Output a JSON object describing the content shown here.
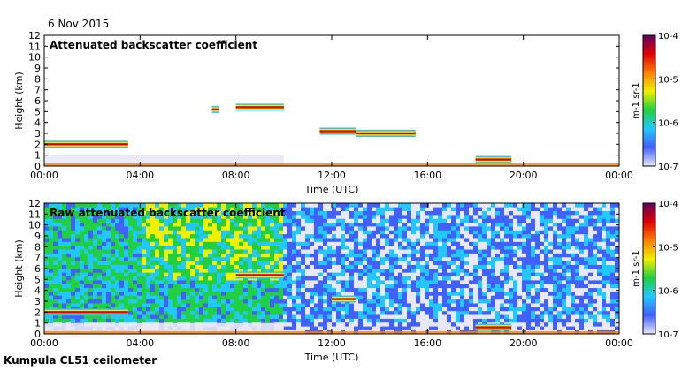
{
  "header": {
    "date": "6 Nov 2015"
  },
  "footer": {
    "instrument": "Kumpula CL51 ceilometer"
  },
  "colorbar": {
    "unit": "m-1 sr-1",
    "tick_labels": [
      "10-4",
      "10-5",
      "10-6",
      "10-7"
    ],
    "stops": [
      "#e8e8f8",
      "#4060ff",
      "#20c8ff",
      "#20d040",
      "#f0f000",
      "#ff8000",
      "#e00000",
      "#600060"
    ]
  },
  "chart_data": [
    {
      "type": "heatmap",
      "title": "Attenuated backscatter coefficient",
      "xlabel": "Time (UTC)",
      "ylabel": "Height (km)",
      "ylim": [
        0,
        12
      ],
      "xlim": [
        "00:00",
        "24:00"
      ],
      "x_ticks": [
        "00:00",
        "04:00",
        "08:00",
        "12:00",
        "16:00",
        "20:00",
        "00:00"
      ],
      "y_ticks": [
        0,
        1,
        2,
        3,
        4,
        5,
        6,
        7,
        8,
        9,
        10,
        11,
        12
      ],
      "color_scale": "log",
      "clim": [
        1e-07,
        0.0001
      ],
      "layers": [
        {
          "start_h": 0.0,
          "end_h": 3.5,
          "height_km": 2.0,
          "kind": "cloud"
        },
        {
          "start_h": 7.0,
          "end_h": 7.3,
          "height_km": 5.2,
          "kind": "cloud"
        },
        {
          "start_h": 8.0,
          "end_h": 10.0,
          "height_km": 5.4,
          "kind": "cloud"
        },
        {
          "start_h": 11.5,
          "end_h": 13.0,
          "height_km": 3.2,
          "kind": "cloud"
        },
        {
          "start_h": 13.0,
          "end_h": 15.5,
          "height_km": 3.0,
          "kind": "cloud"
        },
        {
          "start_h": 18.0,
          "end_h": 19.5,
          "height_km": 0.6,
          "kind": "cloud"
        }
      ]
    },
    {
      "type": "heatmap",
      "title": "Raw attenuated backscatter coefficient",
      "xlabel": "Time (UTC)",
      "ylabel": "Height (km)",
      "ylim": [
        0,
        12
      ],
      "xlim": [
        "00:00",
        "24:00"
      ],
      "x_ticks": [
        "00:00",
        "04:00",
        "08:00",
        "12:00",
        "16:00",
        "20:00",
        "00:00"
      ],
      "y_ticks": [
        0,
        1,
        2,
        3,
        4,
        5,
        6,
        7,
        8,
        9,
        10,
        11,
        12
      ],
      "color_scale": "log",
      "clim": [
        1e-07,
        0.0001
      ],
      "layers": [
        {
          "start_h": 0.0,
          "end_h": 3.5,
          "height_km": 2.0,
          "kind": "cloud"
        },
        {
          "start_h": 8.0,
          "end_h": 10.0,
          "height_km": 5.4,
          "kind": "cloud"
        },
        {
          "start_h": 12.0,
          "end_h": 13.0,
          "height_km": 3.2,
          "kind": "cloud"
        },
        {
          "start_h": 18.0,
          "end_h": 19.5,
          "height_km": 0.6,
          "kind": "cloud"
        }
      ]
    }
  ]
}
